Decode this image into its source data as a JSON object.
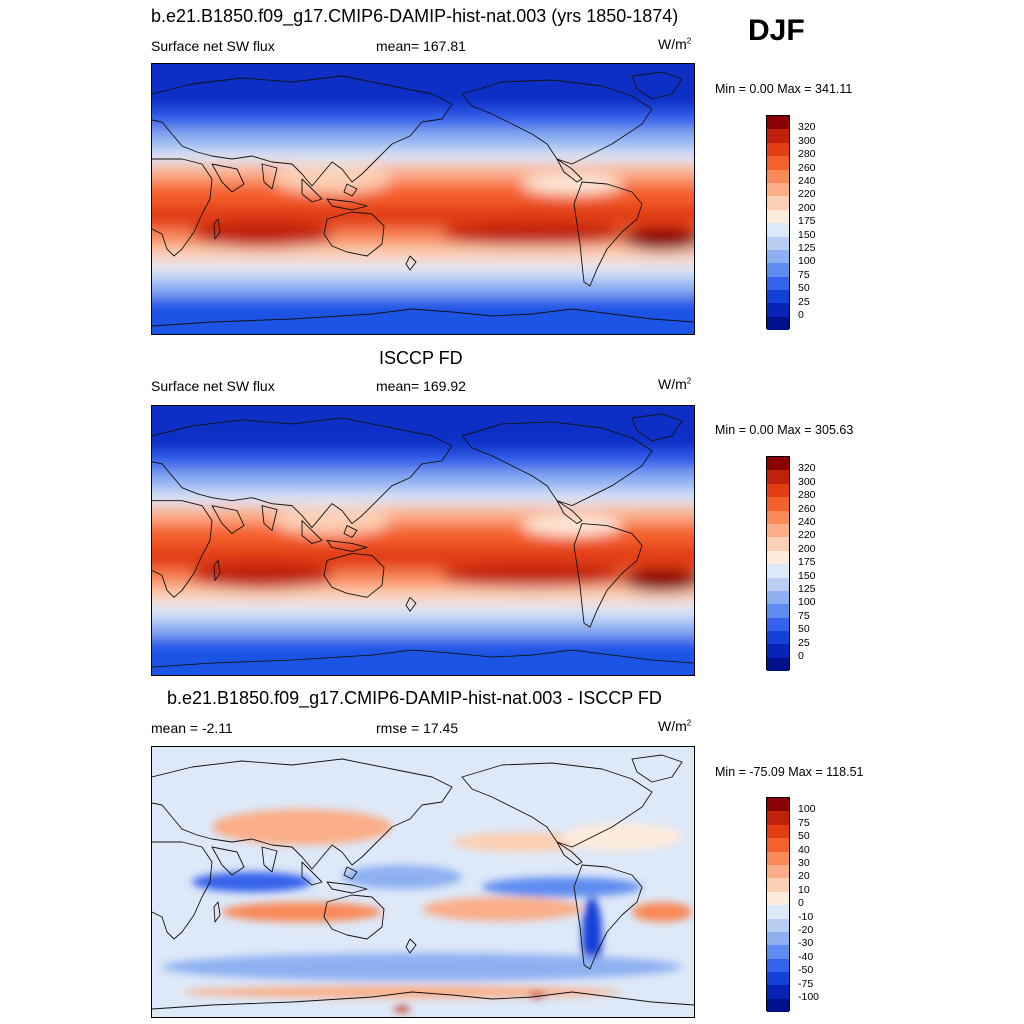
{
  "season": "DJF",
  "units_base": "W/m",
  "units_exp": "2",
  "panels": [
    {
      "title": "b.e21.B1850.f09_g17.CMIP6-DAMIP-hist-nat.003 (yrs 1850-1874)",
      "left_label": "Surface net SW flux",
      "center_label": "mean= 167.81",
      "minmax": "Min =   0.00 Max = 341.11",
      "type": "absolute"
    },
    {
      "title": "ISCCP FD",
      "left_label": "Surface net SW flux",
      "center_label": "mean= 169.92",
      "minmax": "Min =   0.00 Max = 305.63",
      "type": "absolute"
    },
    {
      "title": "b.e21.B1850.f09_g17.CMIP6-DAMIP-hist-nat.003 - ISCCP FD",
      "left_label": "mean =  -2.11",
      "center_label": "rmse =  17.45",
      "minmax": "Min = -75.09 Max = 118.51",
      "type": "difference"
    }
  ],
  "colorbars": {
    "absolute": {
      "levels": [
        "320",
        "300",
        "280",
        "260",
        "240",
        "220",
        "200",
        "175",
        "150",
        "125",
        "100",
        "75",
        "50",
        "25",
        "0"
      ],
      "colors": [
        "#8b0000",
        "#c1200a",
        "#e23c12",
        "#f5612c",
        "#f98a5a",
        "#fbae88",
        "#fdd0b5",
        "#fdebdb",
        "#dde8f8",
        "#b8cef5",
        "#8eb0f2",
        "#5e8cf0",
        "#3462ec",
        "#1240d8",
        "#0824b8",
        "#00108a"
      ]
    },
    "difference": {
      "levels": [
        "100",
        "75",
        "50",
        "40",
        "30",
        "20",
        "10",
        "0",
        "-10",
        "-20",
        "-30",
        "-40",
        "-50",
        "-75",
        "-100"
      ],
      "colors": [
        "#8b0000",
        "#c1200a",
        "#e23c12",
        "#f5612c",
        "#f98a5a",
        "#fbae88",
        "#fdd0b5",
        "#fdebdb",
        "#dde8f8",
        "#b8cef5",
        "#8eb0f2",
        "#5e8cf0",
        "#3462ec",
        "#1240d8",
        "#0824b8",
        "#00108a"
      ]
    }
  }
}
